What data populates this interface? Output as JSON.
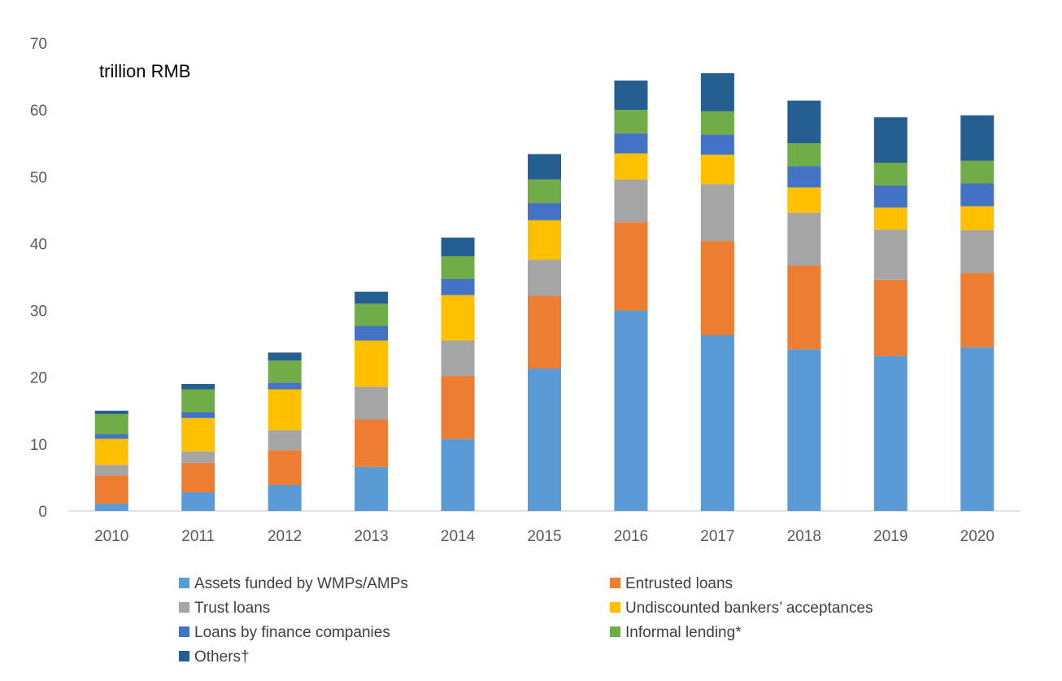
{
  "chart_data": {
    "type": "bar",
    "stacked": true,
    "unit_label": "trillion RMB",
    "categories": [
      "2010",
      "2011",
      "2012",
      "2013",
      "2014",
      "2015",
      "2016",
      "2017",
      "2018",
      "2019",
      "2020"
    ],
    "ylim": [
      0,
      70
    ],
    "yticks": [
      "0",
      "10",
      "20",
      "30",
      "40",
      "50",
      "60",
      "70"
    ],
    "grid": false,
    "legend_position": "bottom",
    "series": [
      {
        "name": "Assets funded by WMPs/AMPs",
        "color": "#5B9BD5",
        "values": [
          1.1,
          2.8,
          3.9,
          6.6,
          10.8,
          21.3,
          30.0,
          26.3,
          24.2,
          23.2,
          24.5
        ]
      },
      {
        "name": "Entrusted loans",
        "color": "#ED7D31",
        "values": [
          4.2,
          4.4,
          5.2,
          7.1,
          9.4,
          10.9,
          13.2,
          14.1,
          12.5,
          11.4,
          11.1
        ]
      },
      {
        "name": "Trust loans",
        "color": "#A5A5A5",
        "values": [
          1.6,
          1.7,
          3.0,
          4.9,
          5.3,
          5.4,
          6.4,
          8.5,
          7.9,
          7.5,
          6.4
        ]
      },
      {
        "name": "Undiscounted bankers’ acceptances",
        "color": "#FFC000",
        "values": [
          3.9,
          5.0,
          6.1,
          6.9,
          6.8,
          5.9,
          3.9,
          4.4,
          3.8,
          3.3,
          3.6
        ]
      },
      {
        "name": "Loans by finance companies",
        "color": "#4472C4",
        "values": [
          0.7,
          0.9,
          1.0,
          2.2,
          2.4,
          2.6,
          3.0,
          3.0,
          3.2,
          3.3,
          3.4
        ]
      },
      {
        "name": "Informal lending*",
        "color": "#70AD47",
        "values": [
          3.0,
          3.4,
          3.3,
          3.3,
          3.4,
          3.5,
          3.5,
          3.5,
          3.4,
          3.4,
          3.4
        ]
      },
      {
        "name": "Others†",
        "color": "#255E91",
        "values": [
          0.5,
          0.8,
          1.2,
          1.8,
          2.8,
          3.8,
          4.4,
          5.7,
          6.4,
          6.8,
          6.8
        ]
      }
    ]
  }
}
